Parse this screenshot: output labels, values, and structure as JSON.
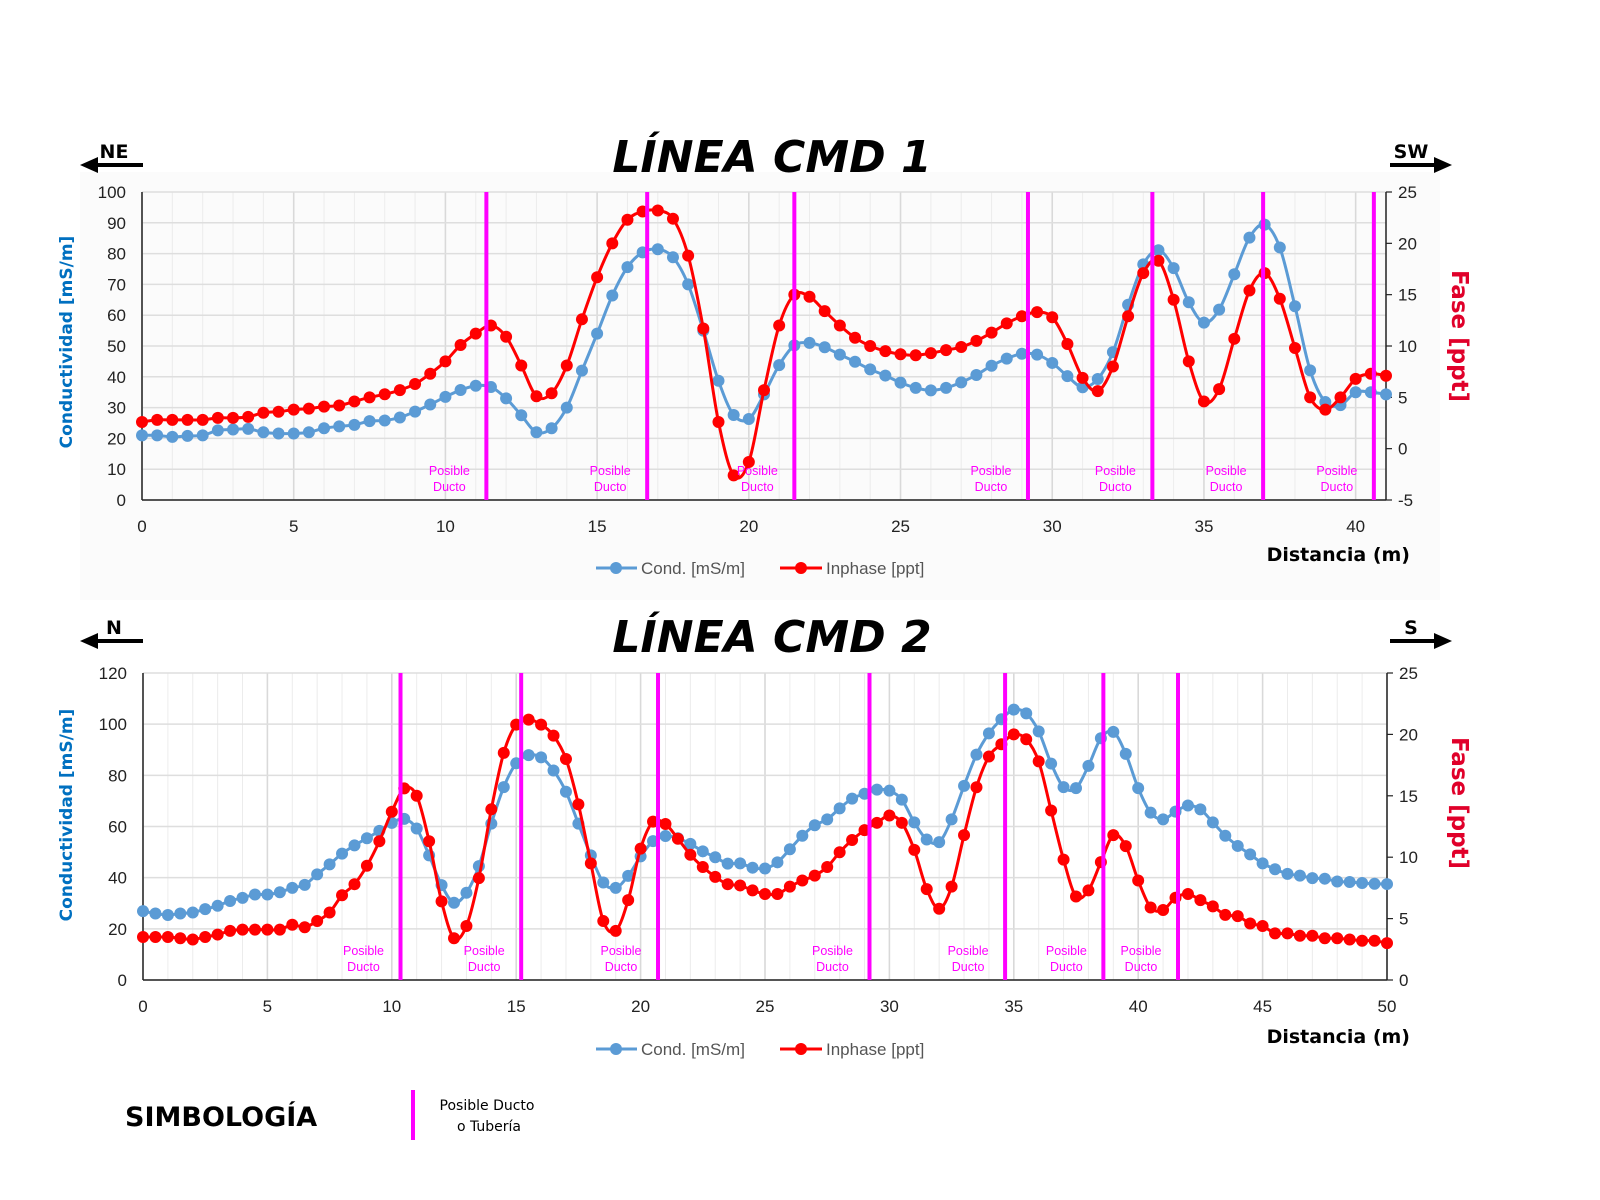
{
  "colors": {
    "cond": "#5B9BD5",
    "inphase": "#FF0000",
    "ducto": "#FF00FF",
    "ylabel": "#0070C0",
    "y2label": "#E0002A"
  },
  "legend": {
    "cond": "Cond. [mS/m]",
    "inphase": "Inphase [ppt]",
    "placement": "bottom"
  },
  "ducto_label": [
    "Posible",
    "Ducto"
  ],
  "symbology": {
    "title": "SIMBOLOGÍA",
    "item_line1": "Posible Ducto",
    "item_line2": "o Tubería"
  },
  "chart_data": [
    {
      "type": "line",
      "title": "LÍNEA CMD 1",
      "direction_left": "NE",
      "direction_right": "SW",
      "xlabel": "Distancia  (m)",
      "ylabel": "Conductividad [mS/m]",
      "y2label": "Fase [ppt]",
      "xlim": [
        0,
        41
      ],
      "ylim": [
        0,
        100
      ],
      "y2lim": [
        -5,
        25
      ],
      "xticks": [
        0,
        5,
        10,
        15,
        20,
        25,
        30,
        35,
        40
      ],
      "yticks": [
        0,
        10,
        20,
        30,
        40,
        50,
        60,
        70,
        80,
        90,
        100
      ],
      "y2ticks": [
        -5,
        0,
        5,
        10,
        15,
        20,
        25
      ],
      "grid": true,
      "x": [
        0,
        0.5,
        1,
        1.5,
        2,
        2.5,
        3,
        3.5,
        4,
        4.5,
        5,
        5.5,
        6,
        6.5,
        7,
        7.5,
        8,
        8.5,
        9,
        9.5,
        10,
        10.5,
        11,
        11.5,
        12,
        12.5,
        13,
        13.5,
        14,
        14.5,
        15,
        15.5,
        16,
        16.5,
        17,
        17.5,
        18,
        18.5,
        19,
        19.5,
        20,
        20.5,
        21,
        21.5,
        22,
        22.5,
        23,
        23.5,
        24,
        24.5,
        25,
        25.5,
        26,
        26.5,
        27,
        27.5,
        28,
        28.5,
        29,
        29.5,
        30,
        30.5,
        31,
        31.5,
        32,
        32.5,
        33,
        33.5,
        34,
        34.5,
        35,
        35.5,
        36,
        36.5,
        37,
        37.5,
        38,
        38.5,
        39,
        39.5,
        40,
        40.5,
        41
      ],
      "series": [
        {
          "name": "Cond. [mS/m]",
          "axis": "left",
          "values": [
            21,
            21,
            20.5,
            20.8,
            21,
            22.6,
            22.9,
            23.1,
            22,
            21.6,
            21.6,
            22,
            23.3,
            23.9,
            24.4,
            25.6,
            25.8,
            26.8,
            28.7,
            31,
            33.5,
            35.7,
            37.1,
            36.7,
            33,
            27.5,
            22,
            23.3,
            30,
            42,
            54,
            66.4,
            75.6,
            80.4,
            81.4,
            78.8,
            70,
            55,
            38.7,
            27.6,
            26.3,
            34.3,
            43.8,
            50.2,
            51,
            49.6,
            47.2,
            44.9,
            42.4,
            40.4,
            38.1,
            36.4,
            35.6,
            36.4,
            38.2,
            40.6,
            43.6,
            45.9,
            47.5,
            47.2,
            44.5,
            40.2,
            36.6,
            39.3,
            48,
            63.4,
            76.5,
            81.1,
            75.3,
            64.2,
            57.6,
            61.8,
            73.3,
            85.2,
            89.4,
            82,
            62.9,
            42.1,
            31.8,
            30.8,
            35,
            35,
            34.3
          ]
        },
        {
          "name": "Inphase [ppt]",
          "axis": "right",
          "values": [
            2.6,
            2.8,
            2.8,
            2.8,
            2.8,
            3.0,
            3.0,
            3.1,
            3.5,
            3.6,
            3.8,
            3.9,
            4.1,
            4.2,
            4.6,
            5.0,
            5.3,
            5.7,
            6.3,
            7.3,
            8.5,
            10.1,
            11.2,
            12.0,
            10.9,
            8.1,
            5.1,
            5.4,
            8.1,
            12.6,
            16.7,
            20.0,
            22.3,
            23.1,
            23.2,
            22.4,
            18.8,
            11.7,
            2.6,
            -2.6,
            -1.3,
            5.7,
            12,
            15,
            14.8,
            13.4,
            12,
            10.8,
            10,
            9.5,
            9.2,
            9.1,
            9.3,
            9.6,
            9.9,
            10.5,
            11.3,
            12.2,
            12.9,
            13.3,
            12.8,
            10.2,
            6.9,
            5.6,
            8,
            12.9,
            17.1,
            18.3,
            14.5,
            8.5,
            4.6,
            5.8,
            10.7,
            15.4,
            17.1,
            14.6,
            9.8,
            5,
            3.8,
            5,
            6.8,
            7.3,
            7.1
          ]
        }
      ],
      "ducto_x": [
        11.35,
        16.65,
        21.5,
        29.2,
        33.3,
        36.95,
        40.6
      ]
    },
    {
      "type": "line",
      "title": "LÍNEA CMD 2",
      "direction_left": "N",
      "direction_right": "S",
      "xlabel": "Distancia  (m)",
      "ylabel": "Conductividad [mS/m]",
      "y2label": "Fase [ppt]",
      "xlim": [
        0,
        50
      ],
      "ylim": [
        0,
        120
      ],
      "y2lim": [
        0,
        25
      ],
      "xticks": [
        0,
        5,
        10,
        15,
        20,
        25,
        30,
        35,
        40,
        45,
        50
      ],
      "yticks": [
        0,
        20,
        40,
        60,
        80,
        100,
        120
      ],
      "y2ticks": [
        0,
        5,
        10,
        15,
        20,
        25
      ],
      "grid": true,
      "x": [
        0,
        0.5,
        1,
        1.5,
        2,
        2.5,
        3,
        3.5,
        4,
        4.5,
        5,
        5.5,
        6,
        6.5,
        7,
        7.5,
        8,
        8.5,
        9,
        9.5,
        10,
        10.5,
        11,
        11.5,
        12,
        12.5,
        13,
        13.5,
        14,
        14.5,
        15,
        15.5,
        16,
        16.5,
        17,
        17.5,
        18,
        18.5,
        19,
        19.5,
        20,
        20.5,
        21,
        21.5,
        22,
        22.5,
        23,
        23.5,
        24,
        24.5,
        25,
        25.5,
        26,
        26.5,
        27,
        27.5,
        28,
        28.5,
        29,
        29.5,
        30,
        30.5,
        31,
        31.5,
        32,
        32.5,
        33,
        33.5,
        34,
        34.5,
        35,
        35.5,
        36,
        36.5,
        37,
        37.5,
        38,
        38.5,
        39,
        39.5,
        40,
        40.5,
        41,
        41.5,
        42,
        42.5,
        43,
        43.5,
        44,
        44.5,
        45,
        45.5,
        46,
        46.5,
        47,
        47.5,
        48,
        48.5,
        49,
        49.5,
        50
      ],
      "series": [
        {
          "name": "Cond. [mS/m]",
          "axis": "left",
          "values": [
            26.9,
            26,
            25.4,
            26,
            26.4,
            27.7,
            29,
            30.9,
            32.1,
            33.4,
            33.4,
            34.3,
            36,
            37.2,
            41.3,
            45.2,
            49.4,
            52.6,
            55.4,
            58.3,
            61.4,
            63,
            59.2,
            48.7,
            37.1,
            30.2,
            34.1,
            44.5,
            61.1,
            75.4,
            84.7,
            87.9,
            87,
            81.9,
            73.6,
            61.1,
            48.7,
            38.1,
            36,
            40.7,
            48.3,
            54.3,
            56.3,
            55.4,
            53.2,
            50.3,
            48,
            45.5,
            45.6,
            43.9,
            43.6,
            46,
            51.1,
            56.4,
            60.5,
            62.8,
            67.1,
            70.9,
            72.8,
            74.4,
            74,
            70.5,
            61.6,
            54.9,
            53.9,
            62.8,
            75.9,
            88.1,
            96.4,
            101.9,
            105.7,
            104.2,
            97.2,
            84.6,
            75.4,
            75,
            83.7,
            94.5,
            97,
            88.4,
            75,
            65.4,
            62.8,
            65.8,
            68.2,
            66.7,
            61.6,
            56.4,
            52.4,
            49.1,
            45.6,
            43.3,
            41.5,
            40.8,
            39.8,
            39.6,
            38.5,
            38.3,
            37.9,
            37.6,
            37.5
          ]
        },
        {
          "name": "Inphase [ppt]",
          "axis": "right",
          "values": [
            3.5,
            3.5,
            3.5,
            3.4,
            3.3,
            3.5,
            3.7,
            4.0,
            4.1,
            4.1,
            4.1,
            4.1,
            4.5,
            4.3,
            4.8,
            5.5,
            6.9,
            7.8,
            9.3,
            11.3,
            13.7,
            15.6,
            15.0,
            11.3,
            6.4,
            3.4,
            4.4,
            8.3,
            13.9,
            18.5,
            20.8,
            21.2,
            20.8,
            19.9,
            18.0,
            14.3,
            9.5,
            4.8,
            4.0,
            6.5,
            10.7,
            12.9,
            12.7,
            11.5,
            10.2,
            9.2,
            8.4,
            7.8,
            7.7,
            7.3,
            7.0,
            7.0,
            7.6,
            8.1,
            8.5,
            9.2,
            10.4,
            11.4,
            12.2,
            12.8,
            13.4,
            12.8,
            10.6,
            7.4,
            5.8,
            7.6,
            11.8,
            15.7,
            18.2,
            19.2,
            20.0,
            19.6,
            17.8,
            13.8,
            9.8,
            6.8,
            7.3,
            9.6,
            11.8,
            10.9,
            8.1,
            5.9,
            5.7,
            6.7,
            7.0,
            6.5,
            6.0,
            5.3,
            5.2,
            4.6,
            4.4,
            3.8,
            3.8,
            3.6,
            3.6,
            3.4,
            3.4,
            3.3,
            3.2,
            3.2,
            3.0
          ]
        }
      ],
      "ducto_x": [
        10.35,
        15.2,
        20.7,
        29.2,
        34.65,
        38.6,
        41.6
      ]
    }
  ]
}
